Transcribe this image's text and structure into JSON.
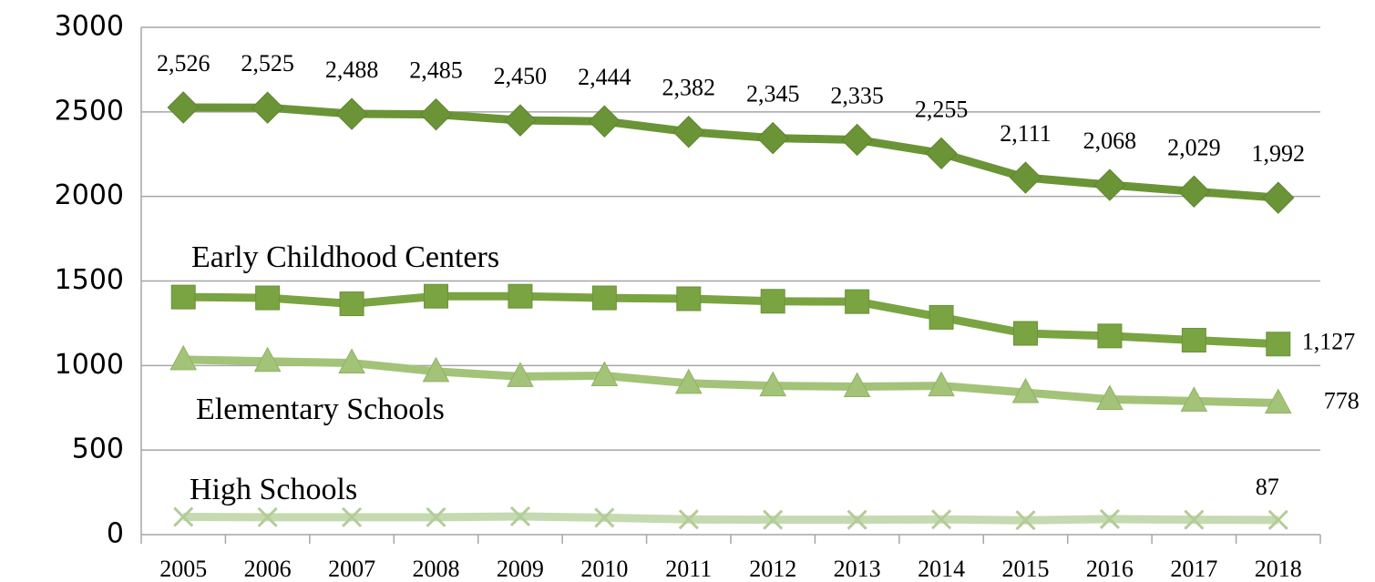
{
  "chart_data": {
    "type": "line",
    "categories": [
      "2005",
      "2006",
      "2007",
      "2008",
      "2009",
      "2010",
      "2011",
      "2012",
      "2013",
      "2014",
      "2015",
      "2016",
      "2017",
      "2018"
    ],
    "series": [
      {
        "color": "#6b9437",
        "marker": "diamond",
        "values": [
          2526,
          2525,
          2488,
          2485,
          2450,
          2444,
          2382,
          2345,
          2335,
          2255,
          2111,
          2068,
          2029,
          1992
        ],
        "value_labels": [
          "2,526",
          "2,525",
          "2,488",
          "2,485",
          "2,450",
          "2,444",
          "2,382",
          "2,345",
          "2,335",
          "2,255",
          "2,111",
          "2,068",
          "2,029",
          "1,992"
        ]
      },
      {
        "name": "Early Childhood Centers",
        "color": "#7aa342",
        "marker": "square",
        "values": [
          1405,
          1400,
          1365,
          1410,
          1410,
          1400,
          1395,
          1380,
          1378,
          1285,
          1190,
          1175,
          1150,
          1127
        ],
        "value_labels": [
          null,
          null,
          null,
          null,
          null,
          null,
          null,
          null,
          null,
          null,
          null,
          null,
          null,
          "1,127"
        ]
      },
      {
        "name": "Elementary Schools",
        "color": "#a3c379",
        "marker": "triangle",
        "values": [
          1035,
          1025,
          1015,
          965,
          935,
          940,
          895,
          880,
          875,
          880,
          840,
          800,
          790,
          778
        ],
        "value_labels": [
          null,
          null,
          null,
          null,
          null,
          null,
          null,
          null,
          null,
          null,
          null,
          null,
          null,
          "778"
        ]
      },
      {
        "name": "High Schools",
        "color": "#c5dab0",
        "marker": "x",
        "values": [
          105,
          103,
          103,
          103,
          108,
          100,
          90,
          88,
          88,
          90,
          85,
          92,
          88,
          87
        ],
        "value_labels": [
          null,
          null,
          null,
          null,
          null,
          null,
          null,
          null,
          null,
          null,
          null,
          null,
          null,
          "87"
        ]
      }
    ],
    "ylim": [
      0,
      3000
    ],
    "yticks": [
      0,
      500,
      1000,
      1500,
      2000,
      2500,
      3000
    ],
    "grid": true
  }
}
